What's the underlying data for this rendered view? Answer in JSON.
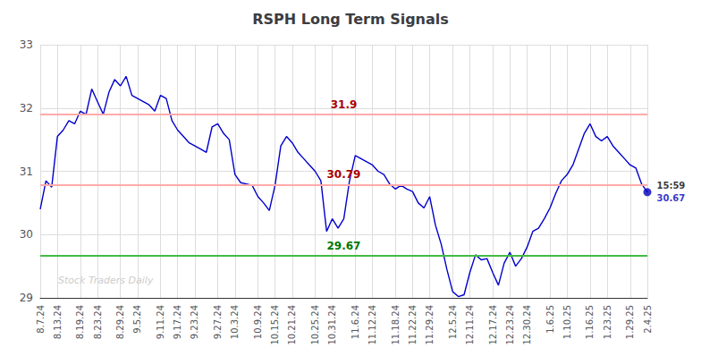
{
  "chart_data": {
    "type": "line",
    "title": "RSPH Long Term Signals",
    "categories": [
      "8.7.24",
      null,
      null,
      "8.13.24",
      null,
      null,
      null,
      "8.19.24",
      null,
      null,
      "8.23.24",
      null,
      null,
      null,
      "8.29.24",
      null,
      null,
      "9.5.24",
      null,
      null,
      null,
      "9.11.24",
      null,
      null,
      "9.17.24",
      null,
      null,
      "9.23.24",
      null,
      null,
      null,
      "9.27.24",
      null,
      null,
      "10.3.24",
      null,
      null,
      null,
      "10.9.24",
      null,
      null,
      "10.15.24",
      null,
      null,
      "10.21.24",
      null,
      null,
      null,
      "10.25.24",
      null,
      null,
      "10.31.24",
      null,
      null,
      null,
      "11.6.24",
      null,
      null,
      "11.12.24",
      null,
      null,
      null,
      "11.18.24",
      null,
      null,
      "11.22.24",
      null,
      null,
      "11.29.24",
      null,
      null,
      null,
      "12.5.24",
      null,
      null,
      "12.11.24",
      null,
      null,
      null,
      "12.17.24",
      null,
      null,
      "12.23.24",
      null,
      null,
      "12.30.24",
      null,
      null,
      null,
      "1.6.25",
      null,
      null,
      "1.10.25",
      null,
      null,
      null,
      "1.16.25",
      null,
      null,
      "1.23.25",
      null,
      null,
      null,
      "1.29.25",
      null,
      null,
      "2.4.25"
    ],
    "values": [
      30.4,
      30.85,
      30.75,
      31.55,
      31.65,
      31.8,
      31.75,
      31.95,
      31.9,
      32.3,
      32.1,
      31.9,
      32.25,
      32.45,
      32.35,
      32.5,
      32.2,
      32.15,
      32.1,
      32.05,
      31.95,
      32.2,
      32.15,
      31.8,
      31.65,
      31.55,
      31.45,
      31.4,
      31.35,
      31.3,
      31.7,
      31.75,
      31.6,
      31.5,
      30.95,
      30.82,
      30.8,
      30.78,
      30.6,
      30.5,
      30.38,
      30.78,
      31.4,
      31.55,
      31.45,
      31.3,
      31.2,
      31.1,
      31.0,
      30.85,
      30.05,
      30.25,
      30.1,
      30.25,
      30.85,
      31.25,
      31.2,
      31.15,
      31.1,
      31.0,
      30.95,
      30.8,
      30.72,
      30.78,
      30.72,
      30.68,
      30.5,
      30.42,
      30.6,
      30.15,
      29.85,
      29.45,
      29.1,
      29.02,
      29.05,
      29.4,
      29.68,
      29.6,
      29.62,
      29.4,
      29.2,
      29.55,
      29.72,
      29.5,
      29.62,
      29.8,
      30.05,
      30.1,
      30.25,
      30.42,
      30.65,
      30.85,
      30.95,
      31.1,
      31.35,
      31.6,
      31.75,
      31.55,
      31.48,
      31.55,
      31.4,
      31.3,
      31.2,
      31.1,
      31.05,
      30.8,
      30.67
    ],
    "color": "#0000cc",
    "ylim": [
      29,
      33
    ],
    "yticks": [
      29,
      30,
      31,
      32,
      33
    ],
    "grid": true,
    "reference_lines": [
      {
        "value": 31.9,
        "label": "31.9",
        "color": "#ffaaaa",
        "label_color": "#aa0000"
      },
      {
        "value": 30.79,
        "label": "30.79",
        "color": "#ffaaaa",
        "label_color": "#aa0000"
      },
      {
        "value": 29.67,
        "label": "29.67",
        "color": "#44bb44",
        "label_color": "#007700"
      }
    ],
    "end_point": {
      "value": 30.67,
      "label": "30.67",
      "time_label": "15:59",
      "color": "#0000bb"
    },
    "watermark": {
      "text": "Stock Traders Daily",
      "color": "#cccccc"
    }
  }
}
